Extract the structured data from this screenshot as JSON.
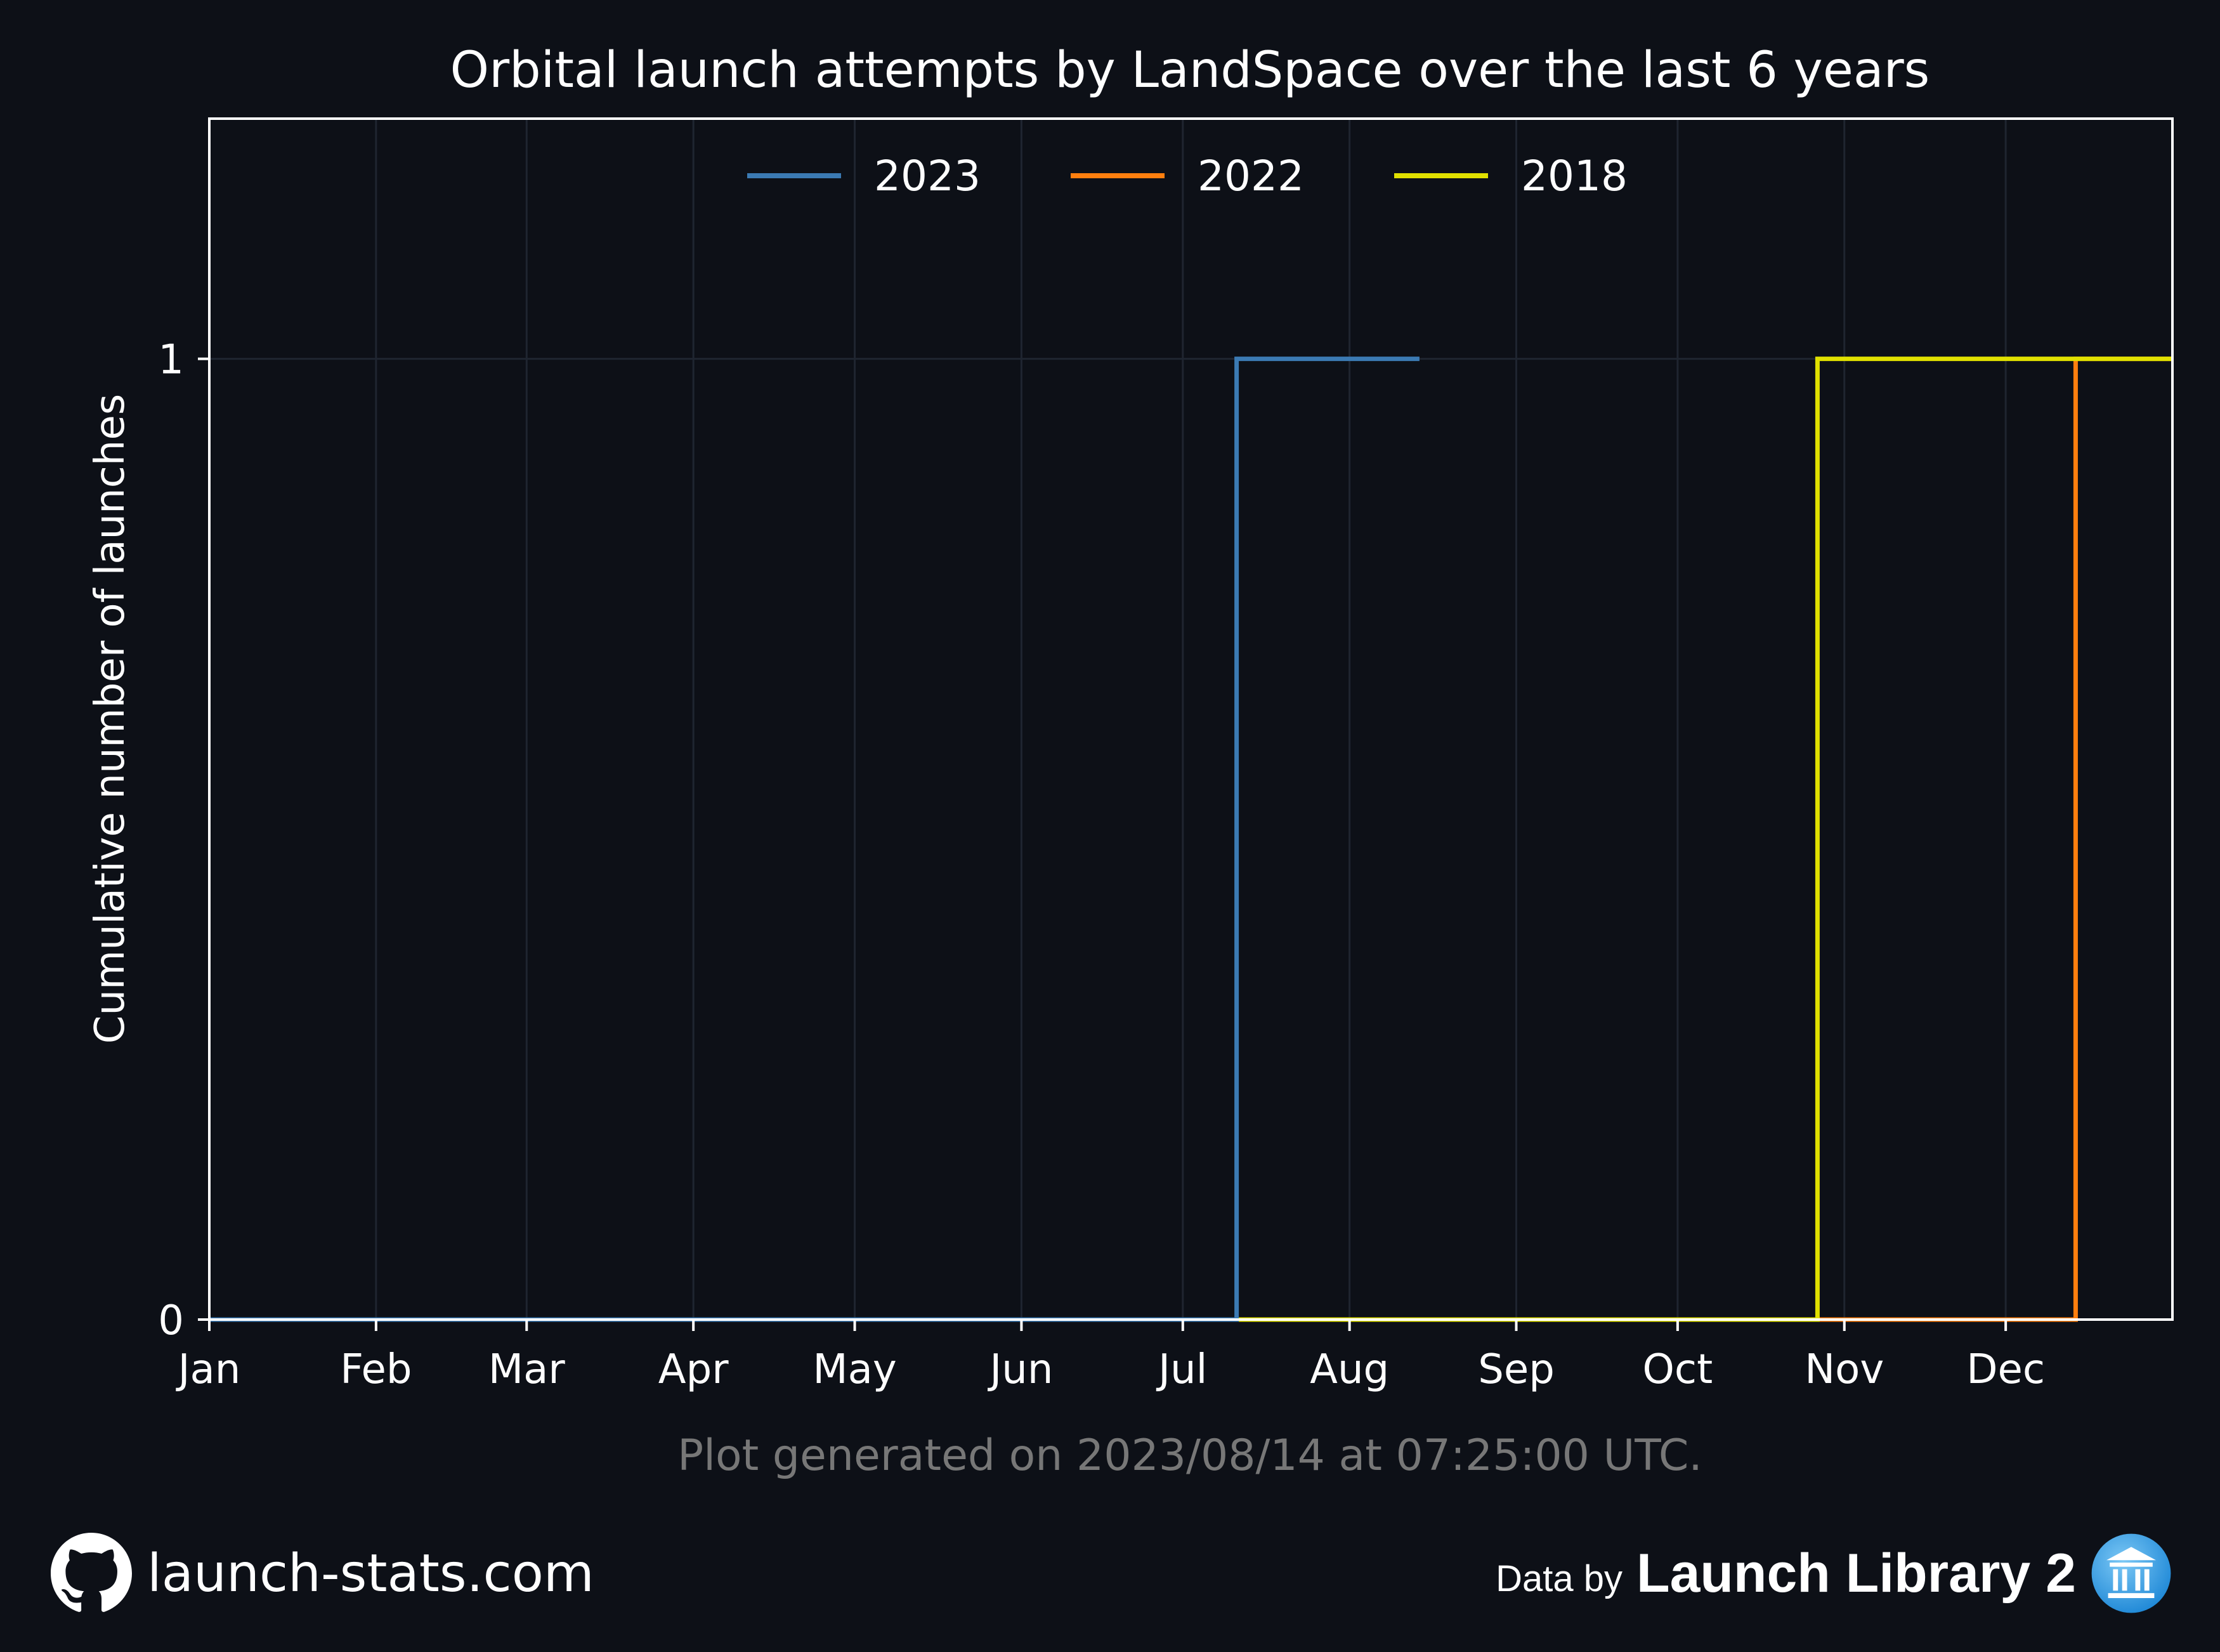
{
  "chart_data": {
    "type": "line",
    "step": true,
    "title": "Orbital launch attempts by LandSpace over the last 6 years",
    "xlabel": "",
    "ylabel": "Cumulative number of launches",
    "x_ticks": [
      "Jan",
      "Feb",
      "Mar",
      "Apr",
      "May",
      "Jun",
      "Jul",
      "Aug",
      "Sep",
      "Oct",
      "Nov",
      "Dec"
    ],
    "y_ticks": [
      0,
      1
    ],
    "xlim": [
      1,
      366
    ],
    "ylim": [
      0,
      1.25
    ],
    "grid": true,
    "legend_position": "top-center",
    "series": [
      {
        "name": "2023",
        "color": "#3b7ab3",
        "x": [
          1,
          192,
          192,
          226
        ],
        "y": [
          0,
          0,
          1,
          1
        ]
      },
      {
        "name": "2022",
        "color": "#ff7f0e",
        "x": [
          1,
          348,
          348,
          366
        ],
        "y": [
          0,
          0,
          1,
          1
        ]
      },
      {
        "name": "2018",
        "color": "#e0e000",
        "x": [
          1,
          300,
          300,
          366
        ],
        "y": [
          0,
          0,
          1,
          1
        ]
      }
    ],
    "legend_order": [
      "2023",
      "2022",
      "2018"
    ],
    "footnote": "Plot generated on 2023/08/14 at 07:25:00 UTC."
  },
  "footer": {
    "site": "launch-stats.com",
    "site_icon": "github-icon",
    "data_by": "Data by",
    "provider": "Launch Library 2",
    "provider_icon": "launch-library-logo"
  },
  "colors": {
    "background": "#0d1017",
    "axes": "#ffffff",
    "grid": "#1f2530",
    "footnote": "#777777"
  }
}
